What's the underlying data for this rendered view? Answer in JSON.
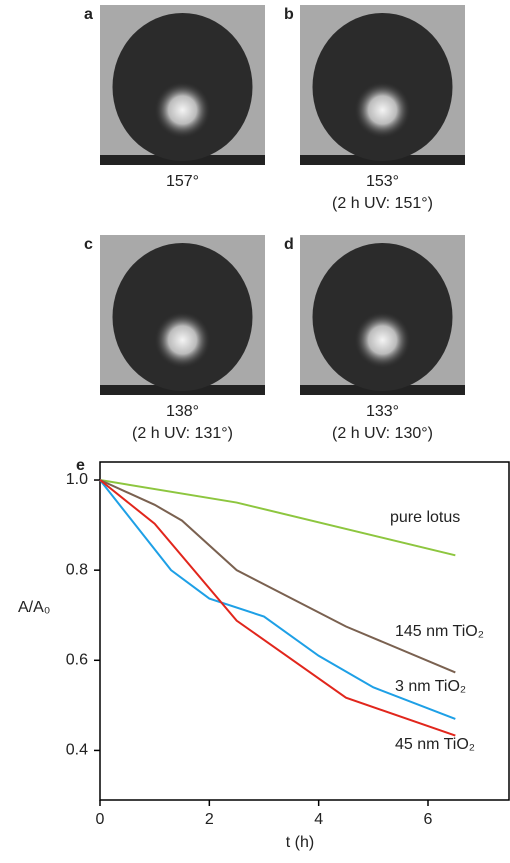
{
  "photos": [
    {
      "label": "a",
      "captions": [
        "157°"
      ]
    },
    {
      "label": "b",
      "captions": [
        "153°",
        "(2 h UV: 151°)"
      ]
    },
    {
      "label": "c",
      "captions": [
        "138°",
        "(2 h UV: 131°)"
      ]
    },
    {
      "label": "d",
      "captions": [
        "133°",
        "(2 h UV: 130°)"
      ]
    }
  ],
  "chart_data": {
    "type": "line",
    "panel_label": "e",
    "x_label": "t (h)",
    "y_label": "A/A₀",
    "xlim": [
      0,
      7.5
    ],
    "xticks": [
      0,
      2,
      4,
      6
    ],
    "ylim": [
      0.29,
      1.04
    ],
    "yticks": [
      0.4,
      0.6,
      0.8,
      {
        "value": 1,
        "label": "1.0"
      }
    ],
    "series": [
      {
        "name": "pure lotus",
        "color": "#8dc63f",
        "x": [
          0,
          2.5,
          6.5
        ],
        "values": [
          1,
          0.95,
          0.833
        ]
      },
      {
        "name": "145 nm TiO₂",
        "color": "#7a6150",
        "x": [
          0,
          1,
          1.5,
          2.5,
          4.5,
          6.5
        ],
        "values": [
          1,
          0.945,
          0.91,
          0.8,
          0.675,
          0.573
        ]
      },
      {
        "name": "3 nm TiO₂",
        "color": "#1ea0e6",
        "x": [
          0,
          1.3,
          2,
          3,
          4,
          5,
          6.5
        ],
        "values": [
          1,
          0.8,
          0.737,
          0.697,
          0.61,
          0.54,
          0.47
        ]
      },
      {
        "name": "45 nm TiO₂",
        "color": "#e1261c",
        "x": [
          0,
          1,
          2.5,
          4.5,
          6.5
        ],
        "values": [
          1,
          0.903,
          0.688,
          0.517,
          0.433
        ]
      }
    ]
  }
}
